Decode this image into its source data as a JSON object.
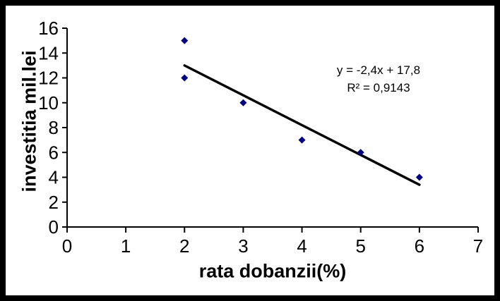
{
  "chart": {
    "y_axis_title": "investitia mil.lei",
    "x_axis_title": "rata dobanzii(%)",
    "annotation": {
      "equation": "y = -2,4x + 17,8",
      "r_squared": "R² = 0,9143"
    },
    "colors": {
      "marker": "#000080",
      "trendline": "#000000",
      "axis": "#000000",
      "background": "#ffffff",
      "frame": "#000000"
    }
  },
  "chart_data": {
    "type": "scatter",
    "title": "",
    "xlabel": "rata dobanzii(%)",
    "ylabel": "investitia mil.lei",
    "x": [
      2,
      2,
      3,
      4,
      5,
      6
    ],
    "y": [
      15,
      12,
      10,
      7,
      6,
      4
    ],
    "points": [
      [
        2,
        15
      ],
      [
        2,
        12
      ],
      [
        3,
        10
      ],
      [
        4,
        7
      ],
      [
        5,
        6
      ],
      [
        6,
        4
      ]
    ],
    "xlim": [
      0,
      7
    ],
    "ylim": [
      0,
      16
    ],
    "xticks": [
      0,
      1,
      2,
      3,
      4,
      5,
      6,
      7
    ],
    "yticks": [
      0,
      2,
      4,
      6,
      8,
      10,
      12,
      14,
      16
    ],
    "grid": false,
    "legend": false,
    "marker": "diamond",
    "trendline": {
      "type": "linear",
      "slope": -2.4,
      "intercept": 17.8,
      "x_start": 2,
      "x_end": 6,
      "equation_label": "y = -2,4x + 17,8",
      "r2_label": "R² = 0,9143",
      "r2_value": 0.9143
    }
  }
}
